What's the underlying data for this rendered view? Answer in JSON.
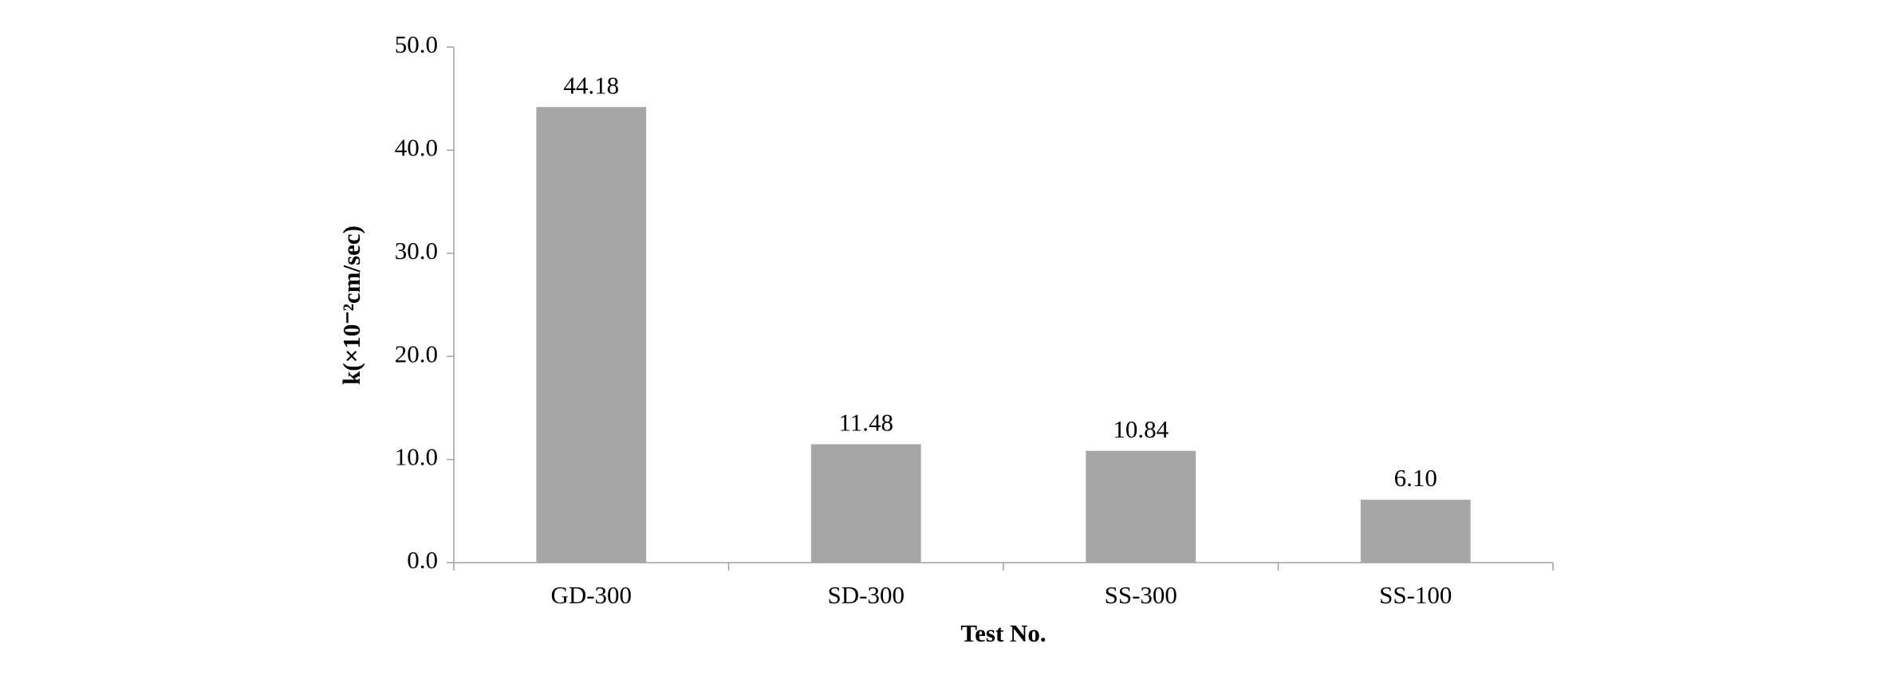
{
  "chart_data": {
    "type": "bar",
    "categories": [
      "GD-300",
      "SD-300",
      "SS-300",
      "SS-100"
    ],
    "values": [
      44.18,
      11.48,
      10.84,
      6.1
    ],
    "value_labels": [
      "44.18",
      "11.48",
      "10.84",
      "6.10"
    ],
    "color": "#a6a6a6",
    "x_label": "Test No.",
    "y_label": "k(×10⁻²cm/sec)",
    "ylim": [
      0,
      50
    ],
    "yticks": [
      {
        "value": 0,
        "label": "0.0"
      },
      {
        "value": 10,
        "label": "10.0"
      },
      {
        "value": 20,
        "label": "20.0"
      },
      {
        "value": 30,
        "label": "30.0"
      },
      {
        "value": 40,
        "label": "40.0"
      },
      {
        "value": 50,
        "label": "50.0"
      }
    ],
    "grid": false
  }
}
